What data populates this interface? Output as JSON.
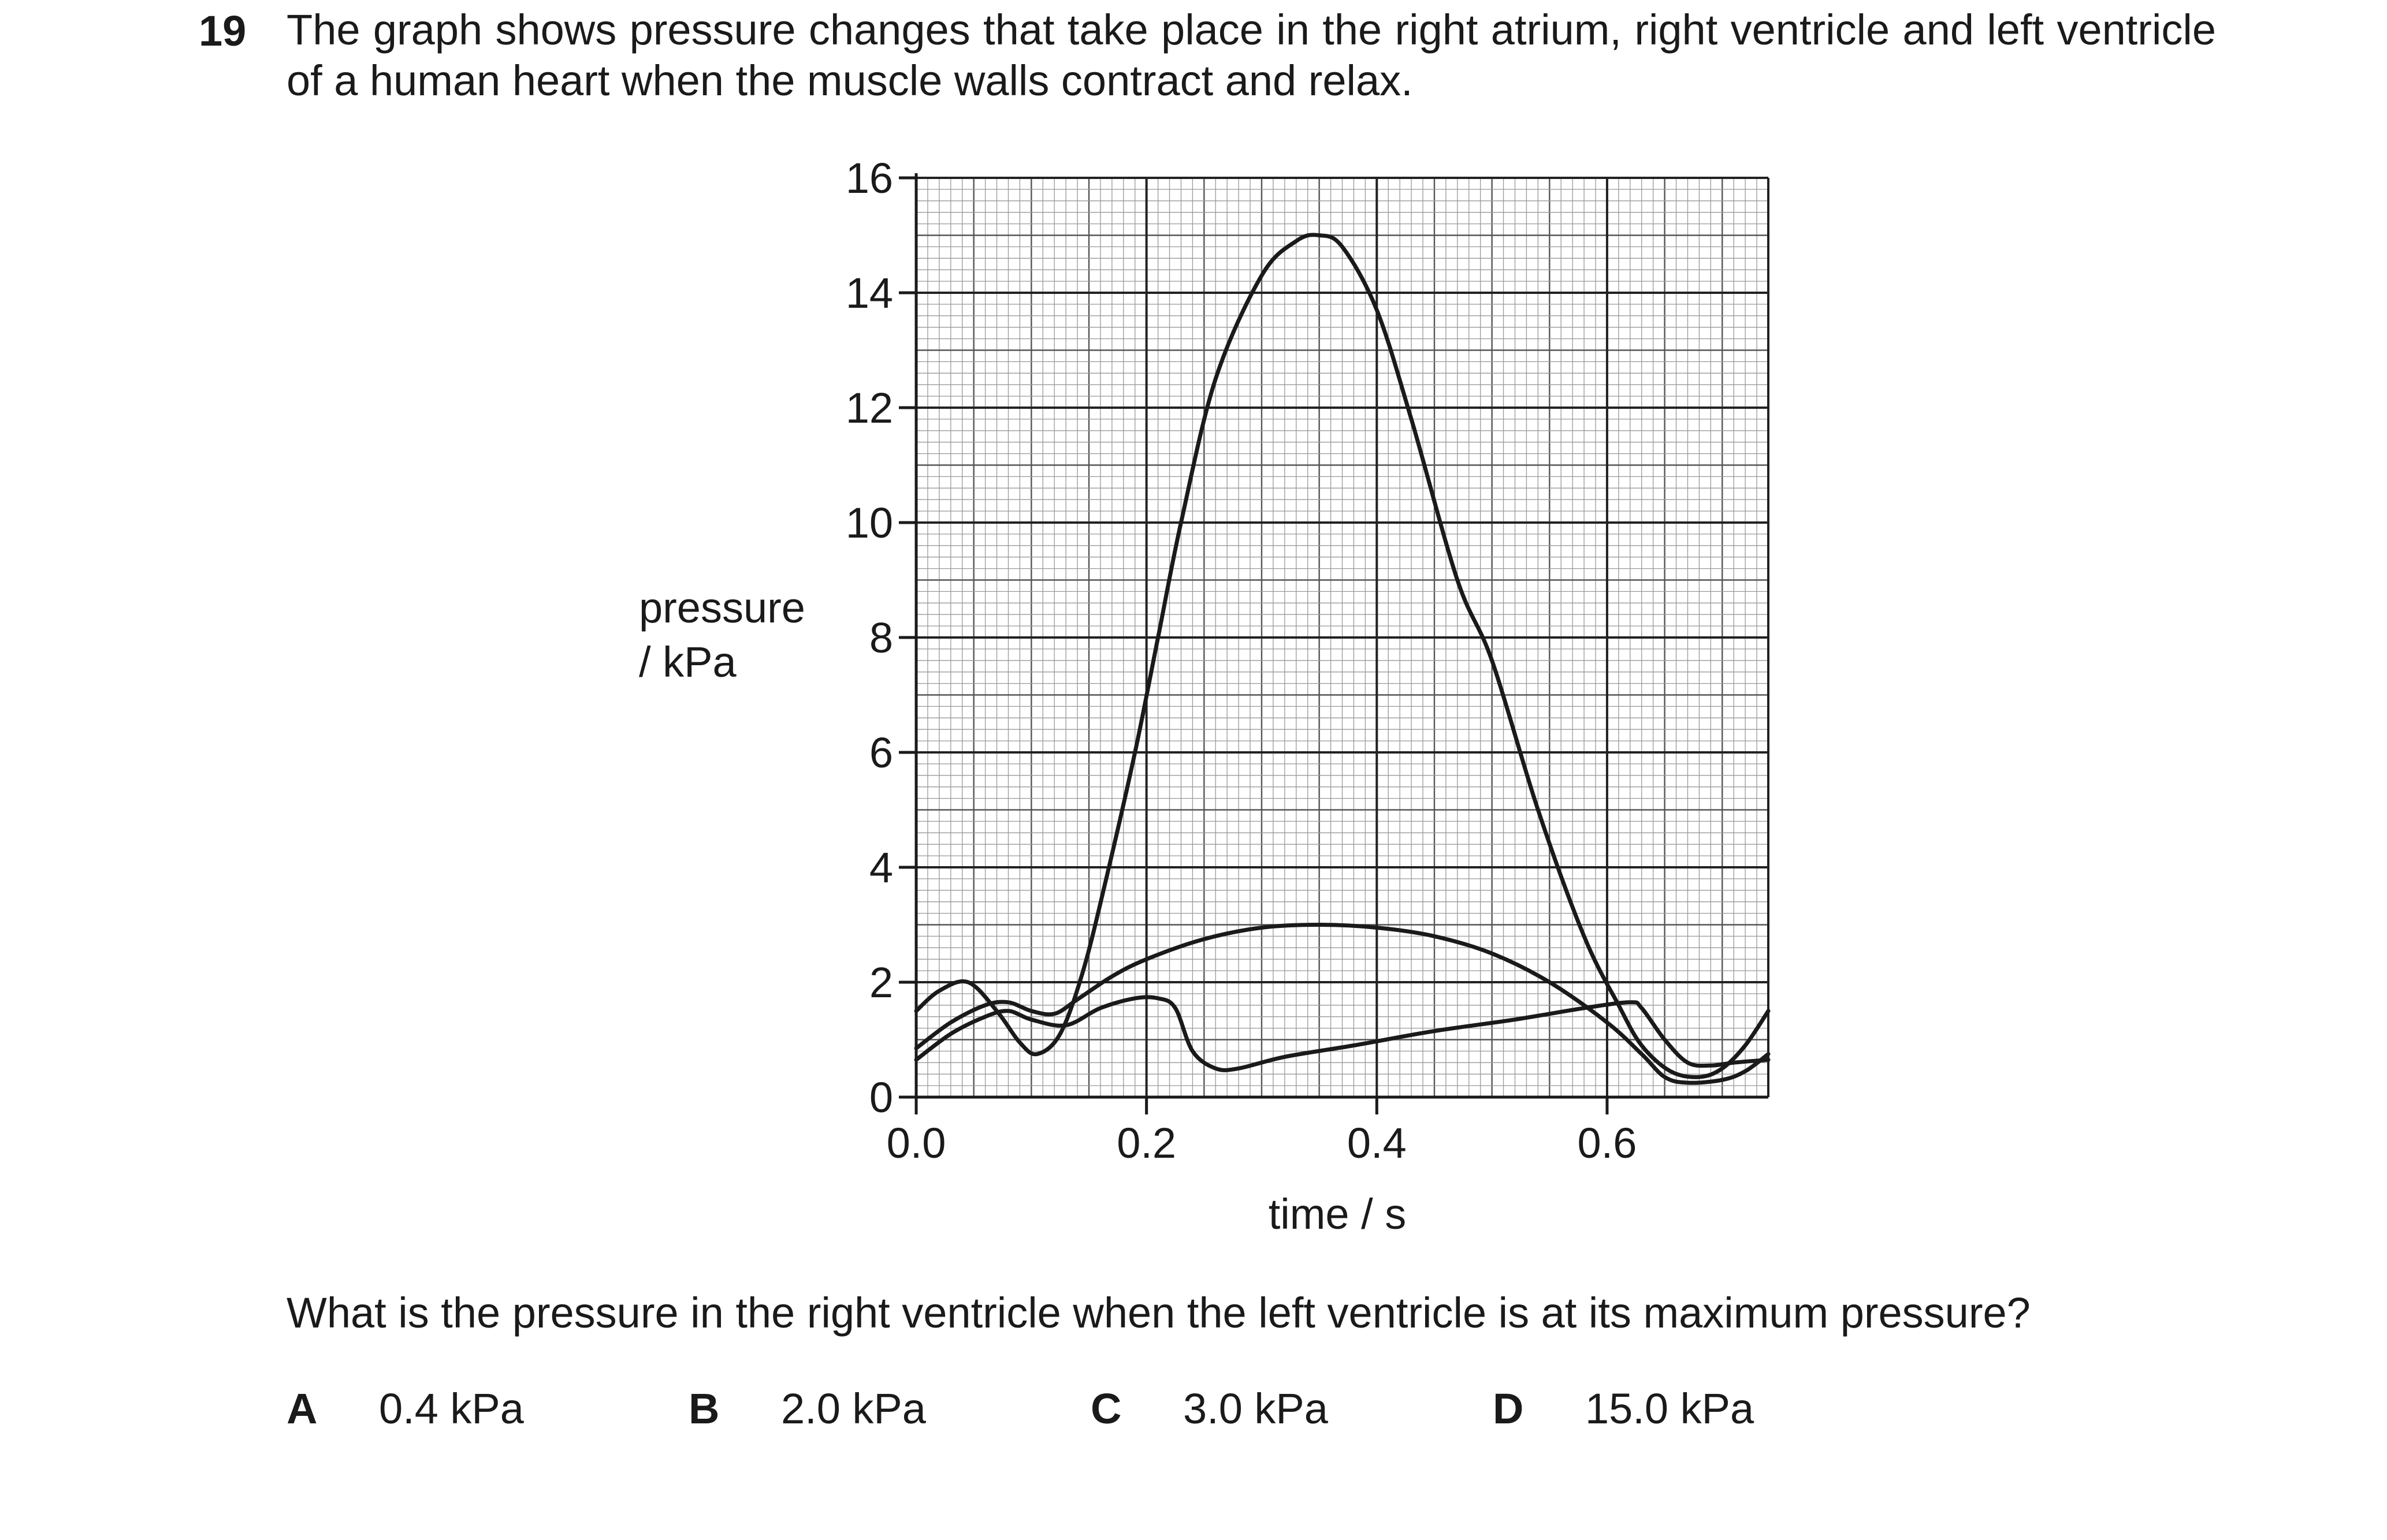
{
  "question": {
    "number": "19",
    "stem": "The graph shows pressure changes that take place in the right atrium, right ventricle and left ventricle of a human heart when the muscle walls contract and relax.",
    "prompt": "What is the pressure in the right ventricle when the left ventricle is at its maximum pressure?",
    "options": [
      {
        "letter": "A",
        "text": "0.4 kPa"
      },
      {
        "letter": "B",
        "text": "2.0 kPa"
      },
      {
        "letter": "C",
        "text": "3.0 kPa"
      },
      {
        "letter": "D",
        "text": "15.0 kPa"
      }
    ]
  },
  "chart_data": {
    "type": "line",
    "title": "",
    "xlabel": "time / s",
    "ylabel_lines": [
      "pressure",
      "/ kPa"
    ],
    "xlim": [
      0,
      0.74
    ],
    "ylim": [
      0,
      16
    ],
    "xticks": [
      0.0,
      0.2,
      0.4,
      0.6
    ],
    "xtick_labels": [
      "0.0",
      "0.2",
      "0.4",
      "0.6"
    ],
    "yticks": [
      0,
      2,
      4,
      6,
      8,
      10,
      12,
      14,
      16
    ],
    "ytick_labels": [
      "0",
      "2",
      "4",
      "6",
      "8",
      "10",
      "12",
      "14",
      "16"
    ],
    "grid": {
      "major_x": 0.2,
      "major_y": 2,
      "minor_x": 0.01,
      "minor_y": 0.2,
      "enabled": true
    },
    "legend": "none",
    "line_color": "#1a1a1a",
    "series": [
      {
        "x": [
          0.0,
          0.02,
          0.045,
          0.07,
          0.09,
          0.105,
          0.125,
          0.145,
          0.165,
          0.19,
          0.21,
          0.23,
          0.26,
          0.3,
          0.33,
          0.35,
          0.37,
          0.4,
          0.43,
          0.47,
          0.5,
          0.54,
          0.58,
          0.61,
          0.63,
          0.655,
          0.68,
          0.7,
          0.72,
          0.74
        ],
        "y": [
          1.5,
          1.85,
          2.0,
          1.5,
          0.95,
          0.75,
          1.1,
          2.2,
          3.8,
          6.0,
          8.0,
          10.0,
          12.5,
          14.3,
          14.9,
          15.0,
          14.8,
          13.7,
          11.8,
          9.0,
          7.6,
          5.0,
          2.8,
          1.6,
          0.9,
          0.45,
          0.35,
          0.5,
          0.9,
          1.5
        ]
      },
      {
        "x": [
          0.0,
          0.03,
          0.06,
          0.08,
          0.1,
          0.12,
          0.14,
          0.17,
          0.2,
          0.25,
          0.3,
          0.35,
          0.4,
          0.45,
          0.5,
          0.55,
          0.6,
          0.63,
          0.65,
          0.67,
          0.7,
          0.72,
          0.74
        ],
        "y": [
          0.85,
          1.3,
          1.6,
          1.65,
          1.5,
          1.45,
          1.7,
          2.1,
          2.4,
          2.75,
          2.95,
          3.0,
          2.95,
          2.8,
          2.5,
          2.0,
          1.3,
          0.75,
          0.35,
          0.25,
          0.3,
          0.45,
          0.75
        ]
      },
      {
        "x": [
          0.0,
          0.03,
          0.06,
          0.08,
          0.1,
          0.13,
          0.16,
          0.19,
          0.21,
          0.225,
          0.24,
          0.26,
          0.28,
          0.32,
          0.38,
          0.45,
          0.52,
          0.58,
          0.62,
          0.63,
          0.65,
          0.67,
          0.69,
          0.71,
          0.74
        ],
        "y": [
          0.65,
          1.1,
          1.4,
          1.5,
          1.35,
          1.25,
          1.55,
          1.72,
          1.72,
          1.55,
          0.8,
          0.5,
          0.5,
          0.7,
          0.9,
          1.15,
          1.35,
          1.55,
          1.65,
          1.55,
          1.0,
          0.6,
          0.55,
          0.6,
          0.65
        ]
      }
    ]
  }
}
